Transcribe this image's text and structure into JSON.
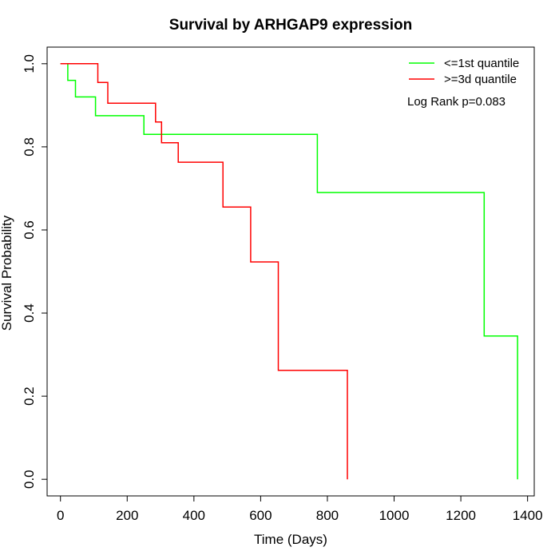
{
  "chart_data": {
    "type": "line",
    "title": "Survival by ARHGAP9 expression",
    "xlabel": "Time (Days)",
    "ylabel": "Survival Probability",
    "xlim": [
      -40,
      1420
    ],
    "ylim": [
      -0.04,
      1.04
    ],
    "x_ticks": [
      0,
      200,
      400,
      600,
      800,
      1000,
      1200,
      1400
    ],
    "y_ticks": [
      0.0,
      0.2,
      0.4,
      0.6,
      0.8,
      1.0
    ],
    "y_tick_labels": [
      "0.0",
      "0.2",
      "0.4",
      "0.6",
      "0.8",
      "1.0"
    ],
    "grid": false,
    "legend_position": "top-right",
    "annotation": "Log Rank p=0.083",
    "series": [
      {
        "name": "<=1st quantile",
        "color": "#00ff00",
        "x": [
          0,
          22,
          22,
          45,
          45,
          105,
          105,
          250,
          250,
          770,
          770,
          1270,
          1270,
          1370,
          1370
        ],
        "y": [
          1.0,
          1.0,
          0.96,
          0.96,
          0.92,
          0.92,
          0.875,
          0.875,
          0.83,
          0.83,
          0.69,
          0.69,
          0.345,
          0.345,
          0.0
        ]
      },
      {
        "name": ">=3d quantile",
        "color": "#ff0000",
        "x": [
          0,
          112,
          112,
          142,
          142,
          285,
          285,
          303,
          303,
          353,
          353,
          487,
          487,
          570,
          570,
          653,
          653,
          860,
          860
        ],
        "y": [
          1.0,
          1.0,
          0.955,
          0.955,
          0.905,
          0.905,
          0.86,
          0.86,
          0.81,
          0.81,
          0.763,
          0.763,
          0.655,
          0.655,
          0.523,
          0.523,
          0.262,
          0.262,
          0.0
        ]
      }
    ]
  }
}
